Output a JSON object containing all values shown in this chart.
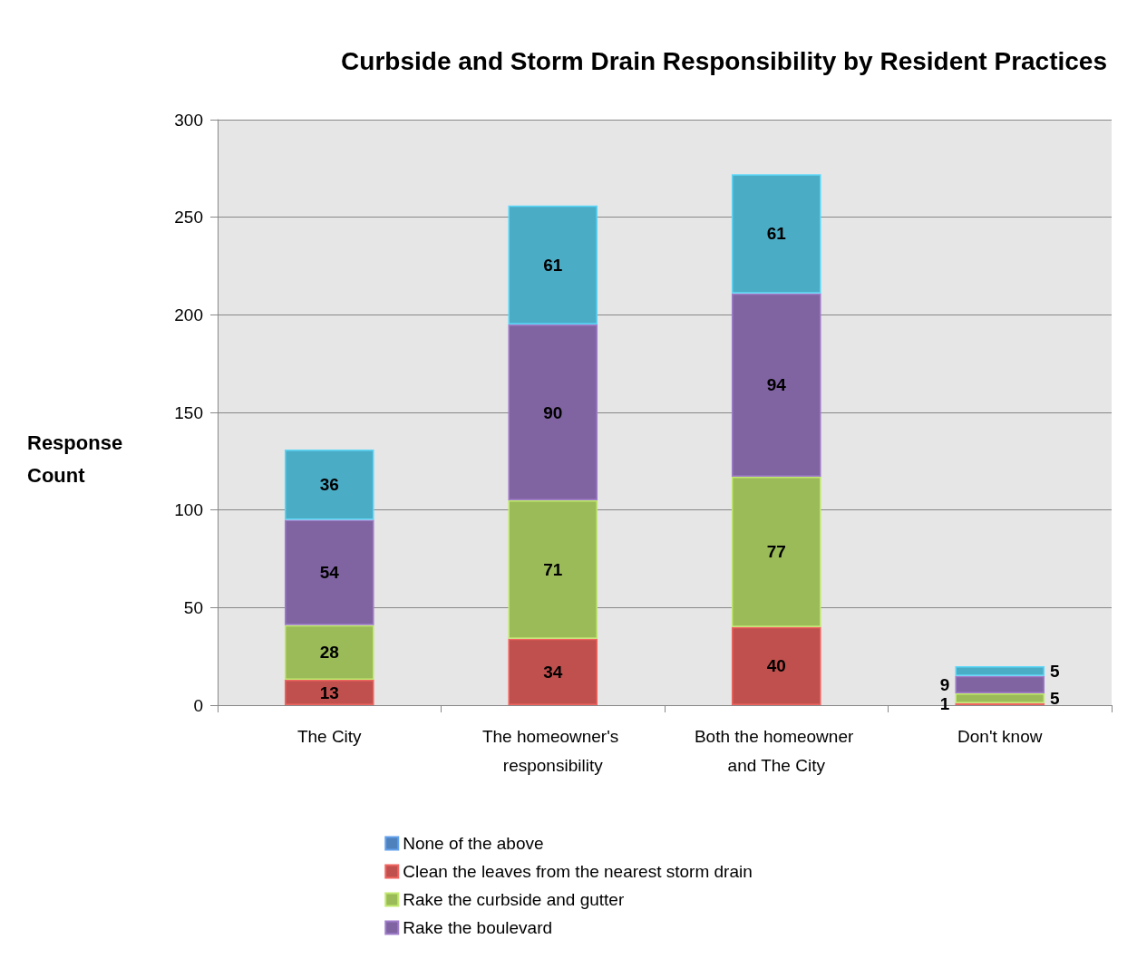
{
  "chart_data": {
    "type": "bar",
    "title": "Curbside and Storm Drain Responsibility by Resident Practices",
    "ylabel": "Response Count",
    "categories": [
      "The City",
      "The homeowner's responsibility",
      "Both the homeowner and The City",
      "Don't know"
    ],
    "stacked": true,
    "data_labels": true,
    "grid": "y",
    "legend": "bottom",
    "ylim": [
      0,
      300
    ],
    "yticks": [
      0,
      50,
      100,
      150,
      200,
      250,
      300
    ],
    "series": [
      {
        "name": "None of the above",
        "color": "#4f81bd",
        "values": [
          null,
          null,
          null,
          null
        ]
      },
      {
        "name": "Clean the leaves from the nearest storm drain",
        "color": "#c0504d",
        "values": [
          13,
          34,
          40,
          1
        ]
      },
      {
        "name": "Rake the curbside and gutter",
        "color": "#9bbb59",
        "values": [
          28,
          71,
          77,
          5
        ]
      },
      {
        "name": "Rake the boulevard",
        "color": "#8064a2",
        "values": [
          54,
          90,
          94,
          9
        ]
      },
      {
        "color": "#4bacc6",
        "values": [
          36,
          61,
          61,
          5
        ]
      }
    ]
  }
}
